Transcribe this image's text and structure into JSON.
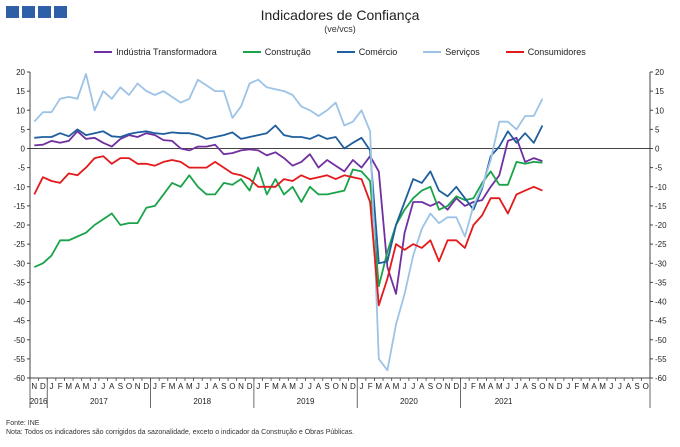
{
  "header": {
    "title": "Indicadores de Confiança",
    "subtitle": "(ve/vcs)"
  },
  "footer": {
    "source": "Fonte: INE",
    "note": "Nota: Todos os indicadores são corrigidos da sazonalidade, exceto o indicador da Construção e Obras Públicas."
  },
  "chart_data": {
    "type": "line",
    "title": "Indicadores de Confiança",
    "subtitle": "(ve/vcs)",
    "ylim": [
      -60,
      20
    ],
    "yticks": [
      20,
      15,
      10,
      5,
      0,
      -5,
      -10,
      -15,
      -20,
      -25,
      -30,
      -35,
      -40,
      -45,
      -50,
      -55,
      -60
    ],
    "grid": false,
    "legend_position": "top",
    "month_letters": [
      "N",
      "D",
      "J",
      "F",
      "M",
      "A",
      "M",
      "J",
      "J",
      "A",
      "S",
      "O",
      "N",
      "D",
      "J",
      "F",
      "M",
      "A",
      "M",
      "J",
      "J",
      "A",
      "S",
      "O",
      "N",
      "D",
      "J",
      "F",
      "M",
      "A",
      "M",
      "J",
      "J",
      "A",
      "S",
      "O",
      "N",
      "D",
      "J",
      "F",
      "M",
      "A",
      "M",
      "J",
      "J",
      "A",
      "S",
      "O",
      "N",
      "D",
      "J",
      "F",
      "M",
      "A",
      "M",
      "J",
      "J",
      "A",
      "S",
      "O",
      "N",
      "D",
      "J",
      "F",
      "M",
      "A",
      "M",
      "J",
      "J",
      "A",
      "S",
      "O"
    ],
    "years": [
      {
        "label": "2016",
        "start": 0,
        "end": 1
      },
      {
        "label": "2017",
        "start": 2,
        "end": 13
      },
      {
        "label": "2018",
        "start": 14,
        "end": 25
      },
      {
        "label": "2019",
        "start": 26,
        "end": 37
      },
      {
        "label": "2020",
        "start": 38,
        "end": 49
      },
      {
        "label": "2021",
        "start": 50,
        "end": 59
      }
    ],
    "x": [
      "2016-11",
      "2016-12",
      "2017-01",
      "2017-02",
      "2017-03",
      "2017-04",
      "2017-05",
      "2017-06",
      "2017-07",
      "2017-08",
      "2017-09",
      "2017-10",
      "2017-11",
      "2017-12",
      "2018-01",
      "2018-02",
      "2018-03",
      "2018-04",
      "2018-05",
      "2018-06",
      "2018-07",
      "2018-08",
      "2018-09",
      "2018-10",
      "2018-11",
      "2018-12",
      "2019-01",
      "2019-02",
      "2019-03",
      "2019-04",
      "2019-05",
      "2019-06",
      "2019-07",
      "2019-08",
      "2019-09",
      "2019-10",
      "2019-11",
      "2019-12",
      "2020-01",
      "2020-02",
      "2020-03",
      "2020-04",
      "2020-05",
      "2020-06",
      "2020-07",
      "2020-08",
      "2020-09",
      "2020-10",
      "2020-11",
      "2020-12",
      "2021-01",
      "2021-02",
      "2021-03",
      "2021-04",
      "2021-05",
      "2021-06",
      "2021-07",
      "2021-08",
      "2021-09",
      "2021-10"
    ],
    "series": [
      {
        "name": "Indústria Transformadora",
        "color": "#7030a0",
        "values": [
          0.8,
          1,
          2,
          1.5,
          2,
          4.5,
          2.5,
          2.8,
          1.5,
          0.5,
          2.5,
          3.5,
          3,
          4,
          3.5,
          2.2,
          2,
          0,
          -0.5,
          0.5,
          0.5,
          1,
          -1.5,
          -1.2,
          -0.5,
          -0.2,
          -0.5,
          -1.8,
          -1,
          -2.5,
          -4.5,
          -3.5,
          -1.5,
          -5,
          -3,
          -4.5,
          -6,
          -3,
          -5,
          -2,
          -6,
          -31,
          -38,
          -22,
          -14,
          -14,
          -15,
          -14,
          -16,
          -13,
          -15,
          -14,
          -13.5,
          -10,
          -7,
          2,
          2.8,
          -3.5,
          -2.5,
          -3.3
        ]
      },
      {
        "name": "Construção",
        "color": "#1aa34a",
        "values": [
          -31,
          -30,
          -28,
          -24,
          -24,
          -23,
          -22,
          -20,
          -18.5,
          -17,
          -20,
          -19.5,
          -19.5,
          -15.5,
          -15,
          -12,
          -9,
          -10,
          -7,
          -10,
          -12,
          -12,
          -9,
          -9.5,
          -8,
          -11,
          -5,
          -12,
          -8,
          -12,
          -10,
          -14,
          -10,
          -12,
          -12,
          -11.5,
          -11,
          -5.5,
          -6,
          -8.5,
          -36,
          -27,
          -20,
          -16,
          -13,
          -11,
          -10,
          -16,
          -15,
          -12.5,
          -13.5,
          -13,
          -9,
          -6,
          -9.5,
          -9.5,
          -3.5,
          -4,
          -3.5,
          -3.7
        ]
      },
      {
        "name": "Comércio",
        "color": "#1f5f9e",
        "values": [
          2.8,
          3,
          3,
          4,
          3.2,
          5,
          3.5,
          4,
          4.5,
          3.2,
          3,
          3.8,
          4.2,
          4.5,
          4,
          3.8,
          4.2,
          4,
          4,
          3.5,
          2.5,
          3,
          3.5,
          4.2,
          2.5,
          3,
          3.5,
          4,
          6,
          3.5,
          3,
          3,
          2.5,
          3.5,
          2.5,
          3,
          0,
          1.5,
          2.8,
          -0.5,
          -30,
          -29.5,
          -20,
          -14,
          -8,
          -9,
          -6,
          -11,
          -12.5,
          -10,
          -13,
          -16,
          -10.5,
          -2,
          0.5,
          4.5,
          1.5,
          4,
          1.5,
          6
        ]
      },
      {
        "name": "Serviços",
        "color": "#9dc3e6",
        "values": [
          7,
          9.5,
          9.5,
          13,
          13.5,
          13,
          19.5,
          10,
          15,
          13,
          16,
          14,
          17,
          15,
          14,
          15,
          13.5,
          12,
          13,
          18,
          16.5,
          15,
          15,
          8,
          11,
          17,
          18,
          16,
          15.5,
          15,
          14,
          11,
          10,
          8.5,
          10,
          12,
          6,
          7,
          10,
          4.5,
          -55,
          -58,
          -46,
          -38,
          -28,
          -21,
          -17,
          -19.5,
          -18,
          -18,
          -23,
          -15,
          -10,
          -3,
          7,
          7,
          5,
          8.5,
          8.5,
          13
        ]
      },
      {
        "name": "Consumidores",
        "color": "#e31a1c",
        "values": [
          -12,
          -7.5,
          -8.5,
          -9,
          -6.5,
          -7,
          -5,
          -2.5,
          -2,
          -4,
          -2.5,
          -2.5,
          -4,
          -4,
          -4.5,
          -3.5,
          -3,
          -3.5,
          -5,
          -5,
          -5,
          -3.5,
          -5,
          -6.5,
          -7,
          -8,
          -10,
          -10,
          -10,
          -8,
          -8.5,
          -7,
          -8,
          -7.5,
          -7,
          -8,
          -7,
          -7.5,
          -8,
          -14,
          -41,
          -34,
          -25,
          -26.5,
          -25,
          -26,
          -24,
          -29.5,
          -24,
          -24,
          -26,
          -20,
          -17.5,
          -13,
          -13,
          -17,
          -12,
          -11,
          -10,
          -11
        ]
      }
    ]
  },
  "layout_hints": {
    "axis_color": "#444444",
    "text_color": "#222222"
  }
}
